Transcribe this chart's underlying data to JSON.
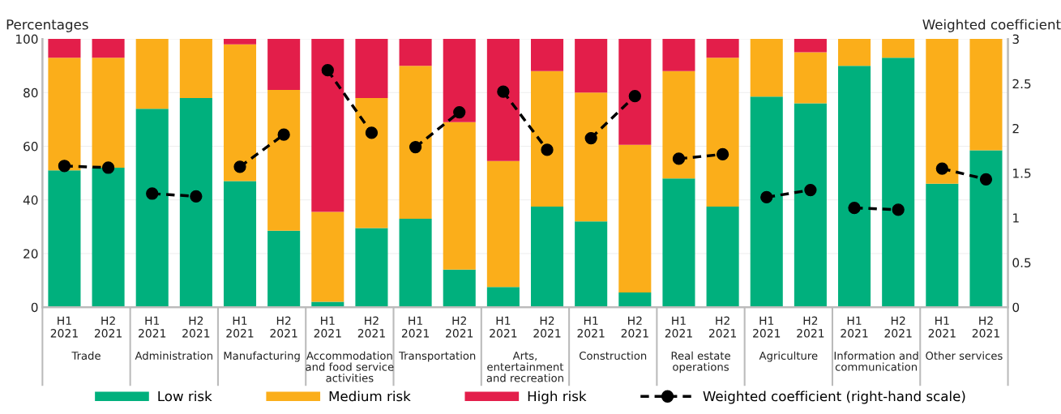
{
  "chart_data": {
    "type": "bar",
    "stacked": true,
    "ylabel": "Percentages",
    "y2label": "Weighted coefficient",
    "categories": [
      "H1\n2021",
      "H2\n2021",
      "H1\n2021",
      "H2\n2021",
      "H1\n2021",
      "H2\n2021",
      "H1\n2021",
      "H2\n2021",
      "H1\n2021",
      "H2\n2021",
      "H1\n2021",
      "H2\n2021",
      "H1\n2021",
      "H2\n2021",
      "H1\n2021",
      "H2\n2021",
      "H1\n2021",
      "H2\n2021",
      "H1\n2021",
      "H2\n2021",
      "H1\n2021",
      "H2\n2021"
    ],
    "annotations": [
      "Trade",
      "Administration",
      "Manufacturing",
      "Accommodation\nand food service\nactivities",
      "Transportation",
      "Arts,\nentertainment\nand recreation",
      "Construction",
      "Real estate\noperations",
      "Agriculture",
      "Information and\ncommunication",
      "Other services"
    ],
    "series": [
      {
        "name": "Low risk",
        "color": "#00b07d",
        "values": [
          51,
          52,
          74,
          78,
          47,
          28.5,
          2,
          29.5,
          33,
          14,
          7.5,
          37.5,
          32,
          5.5,
          48,
          37.5,
          78.5,
          76,
          90,
          93,
          46,
          58.5
        ]
      },
      {
        "name": "Medium risk",
        "color": "#fbae1a",
        "values": [
          42,
          41,
          26,
          22,
          51,
          52.5,
          33.5,
          48.5,
          57,
          55,
          47,
          50.5,
          48,
          55,
          40,
          55.5,
          21.5,
          19,
          10,
          7,
          54,
          41.5
        ]
      },
      {
        "name": "High risk",
        "color": "#e31e4a",
        "values": [
          7,
          7,
          0,
          0,
          2,
          19,
          64.5,
          22,
          10,
          31,
          45.5,
          12,
          20,
          39.5,
          12,
          7,
          0,
          5,
          0,
          0,
          0,
          0
        ]
      },
      {
        "name": "Weighted coefficient (right-hand scale)",
        "type": "line",
        "axis": "y2",
        "color": "#000000",
        "marker": "circle",
        "line_style": "dashed",
        "values": [
          1.58,
          1.56,
          1.27,
          1.24,
          1.57,
          1.93,
          2.65,
          1.95,
          1.79,
          2.18,
          2.41,
          1.76,
          1.89,
          2.36,
          1.66,
          1.71,
          1.23,
          1.31,
          1.11,
          1.09,
          1.55,
          1.43
        ]
      }
    ],
    "ylim": [
      0,
      100
    ],
    "yticks": [
      0,
      20,
      40,
      60,
      80,
      100
    ],
    "y2lim": [
      0,
      3
    ],
    "y2ticks": [
      0,
      {
        "value": 0.5,
        "label": "0.5"
      },
      1,
      {
        "value": 1.5,
        "label": "1.5"
      },
      2,
      {
        "value": 2.5,
        "label": "2.5"
      },
      3
    ],
    "grid": "y",
    "legend": "bottom"
  }
}
